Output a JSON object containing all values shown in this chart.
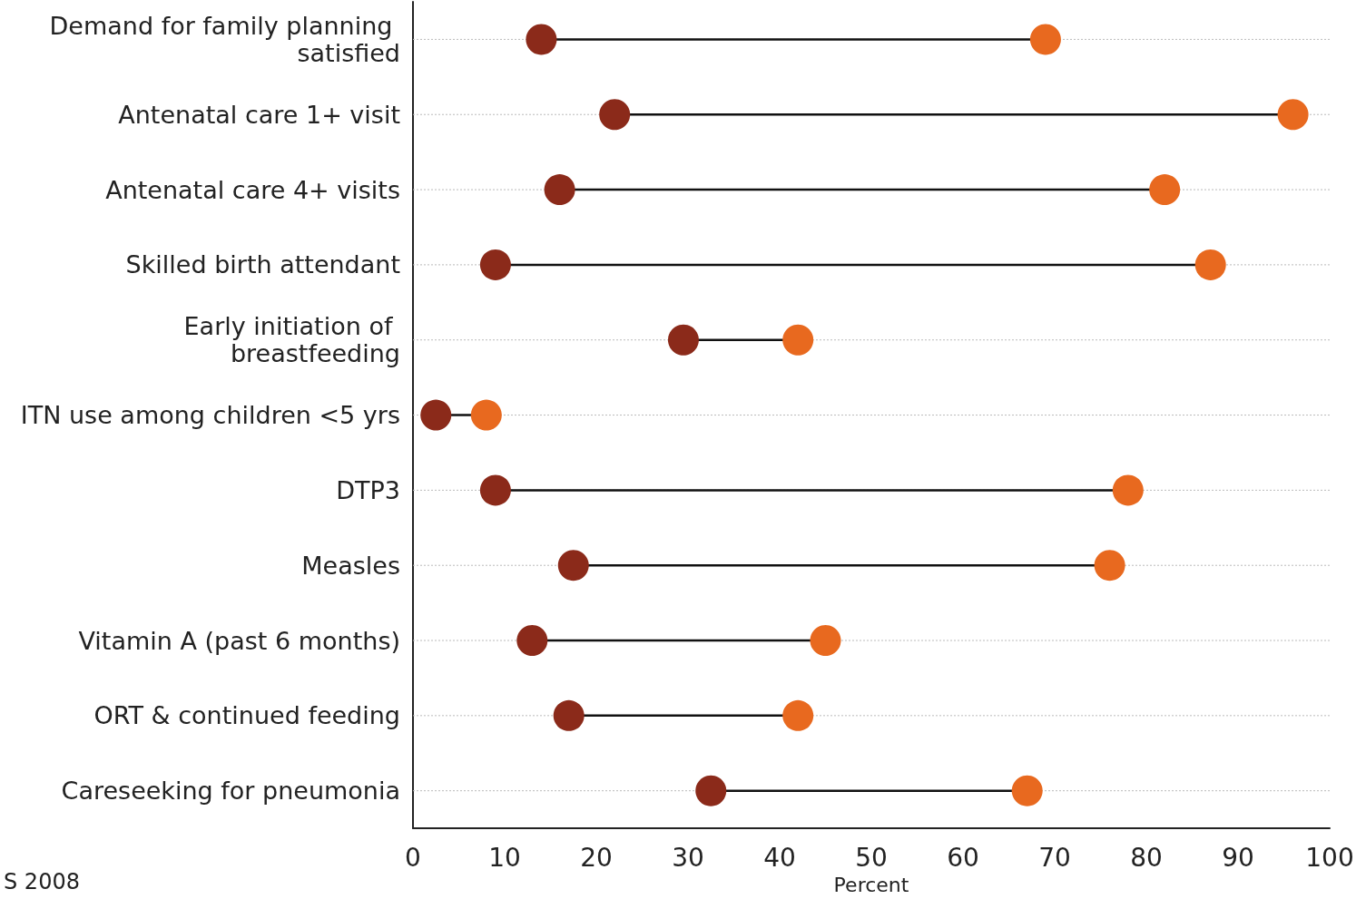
{
  "chart_data": {
    "type": "scatter",
    "xlabel": "Percent",
    "categories": [
      "Demand for family planning satisfied",
      "Antenatal care 1+ visit",
      "Antenatal care 4+ visits",
      "Skilled birth attendant",
      "Early initiation of breastfeeding",
      "ITN use among children <5 yrs",
      "DTP3",
      "Measles",
      "Vitamin A (past 6 months)",
      "ORT & continued feeding",
      "Careseeking for pneumonia"
    ],
    "series": [
      {
        "color": "#8b2a1a",
        "values": [
          14,
          22,
          16,
          9,
          29.5,
          2.5,
          9,
          17.5,
          13,
          17,
          32.5
        ]
      },
      {
        "color": "#e8691f",
        "values": [
          69,
          96,
          82,
          87,
          42,
          8,
          78,
          76,
          45,
          42,
          67
        ]
      }
    ],
    "xlim": [
      0,
      100
    ],
    "xticks": [
      0,
      10,
      20,
      30,
      40,
      50,
      60,
      70,
      80,
      90,
      100
    ],
    "orientation": "horizontal",
    "grid": "y",
    "marker": "circle",
    "annotations": [
      "S 2008"
    ]
  }
}
